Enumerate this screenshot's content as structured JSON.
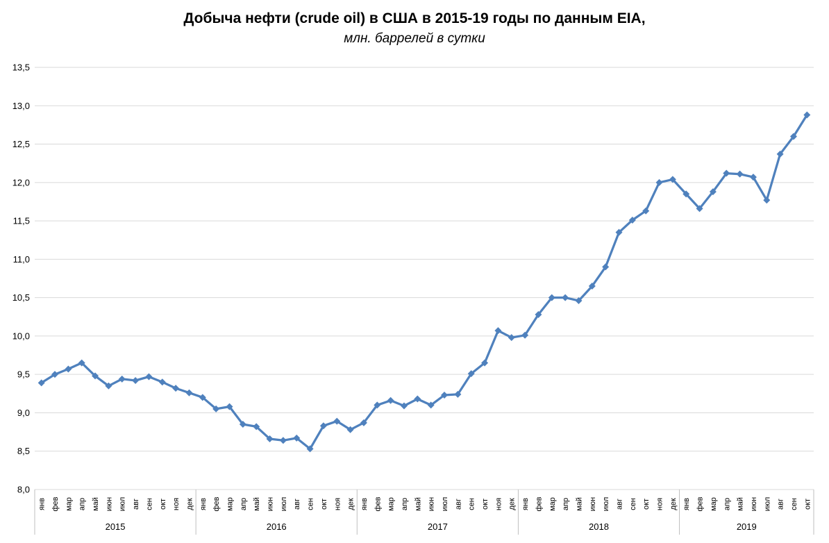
{
  "chart_data": {
    "type": "line",
    "title": "Добыча нефти (crude oil) в США в 2015-19 годы по данным EIA,",
    "subtitle": "млн. баррелей в сутки",
    "legend": "none",
    "grid": true,
    "marker": "diamond",
    "ylim": [
      8.0,
      13.5
    ],
    "ystep": 0.5,
    "y_tick_labels": [
      "8,0",
      "8,5",
      "9,0",
      "9,5",
      "10,0",
      "10,5",
      "11,0",
      "11,5",
      "12,0",
      "12,5",
      "13,0",
      "13,5"
    ],
    "line_color": "#4F81BD",
    "gridline_color": "#D9D9D9",
    "separator_color": "#BFBFBF",
    "text_color": "#000000",
    "groups": [
      {
        "year": "2015",
        "months": [
          "янв",
          "фев",
          "мар",
          "апр",
          "май",
          "июн",
          "июл",
          "авг",
          "сен",
          "окт",
          "ноя",
          "дек"
        ],
        "values": [
          9.39,
          9.5,
          9.57,
          9.65,
          9.48,
          9.35,
          9.44,
          9.42,
          9.47,
          9.4,
          9.32,
          9.26
        ]
      },
      {
        "year": "2016",
        "months": [
          "янв",
          "фев",
          "мар",
          "апр",
          "май",
          "июн",
          "июл",
          "авг",
          "сен",
          "окт",
          "ноя",
          "дек"
        ],
        "values": [
          9.2,
          9.05,
          9.08,
          8.85,
          8.82,
          8.66,
          8.64,
          8.67,
          8.53,
          8.83,
          8.89,
          8.78
        ]
      },
      {
        "year": "2017",
        "months": [
          "янв",
          "фев",
          "мар",
          "апр",
          "май",
          "июн",
          "июл",
          "авг",
          "сен",
          "окт",
          "ноя",
          "дек"
        ],
        "values": [
          8.87,
          9.1,
          9.16,
          9.09,
          9.18,
          9.1,
          9.23,
          9.24,
          9.51,
          9.65,
          10.07,
          9.98
        ]
      },
      {
        "year": "2018",
        "months": [
          "янв",
          "фев",
          "мар",
          "апр",
          "май",
          "июн",
          "июл",
          "авг",
          "сен",
          "окт",
          "ноя",
          "дек"
        ],
        "values": [
          10.01,
          10.28,
          10.5,
          10.5,
          10.46,
          10.65,
          10.9,
          11.35,
          11.51,
          11.63,
          12.0,
          12.04
        ]
      },
      {
        "year": "2019",
        "months": [
          "янв",
          "фев",
          "мар",
          "апр",
          "май",
          "июн",
          "июл",
          "авг",
          "сен",
          "окт"
        ],
        "values": [
          11.85,
          11.66,
          11.88,
          12.12,
          12.11,
          12.07,
          11.77,
          12.37,
          12.6,
          12.88
        ]
      }
    ]
  }
}
